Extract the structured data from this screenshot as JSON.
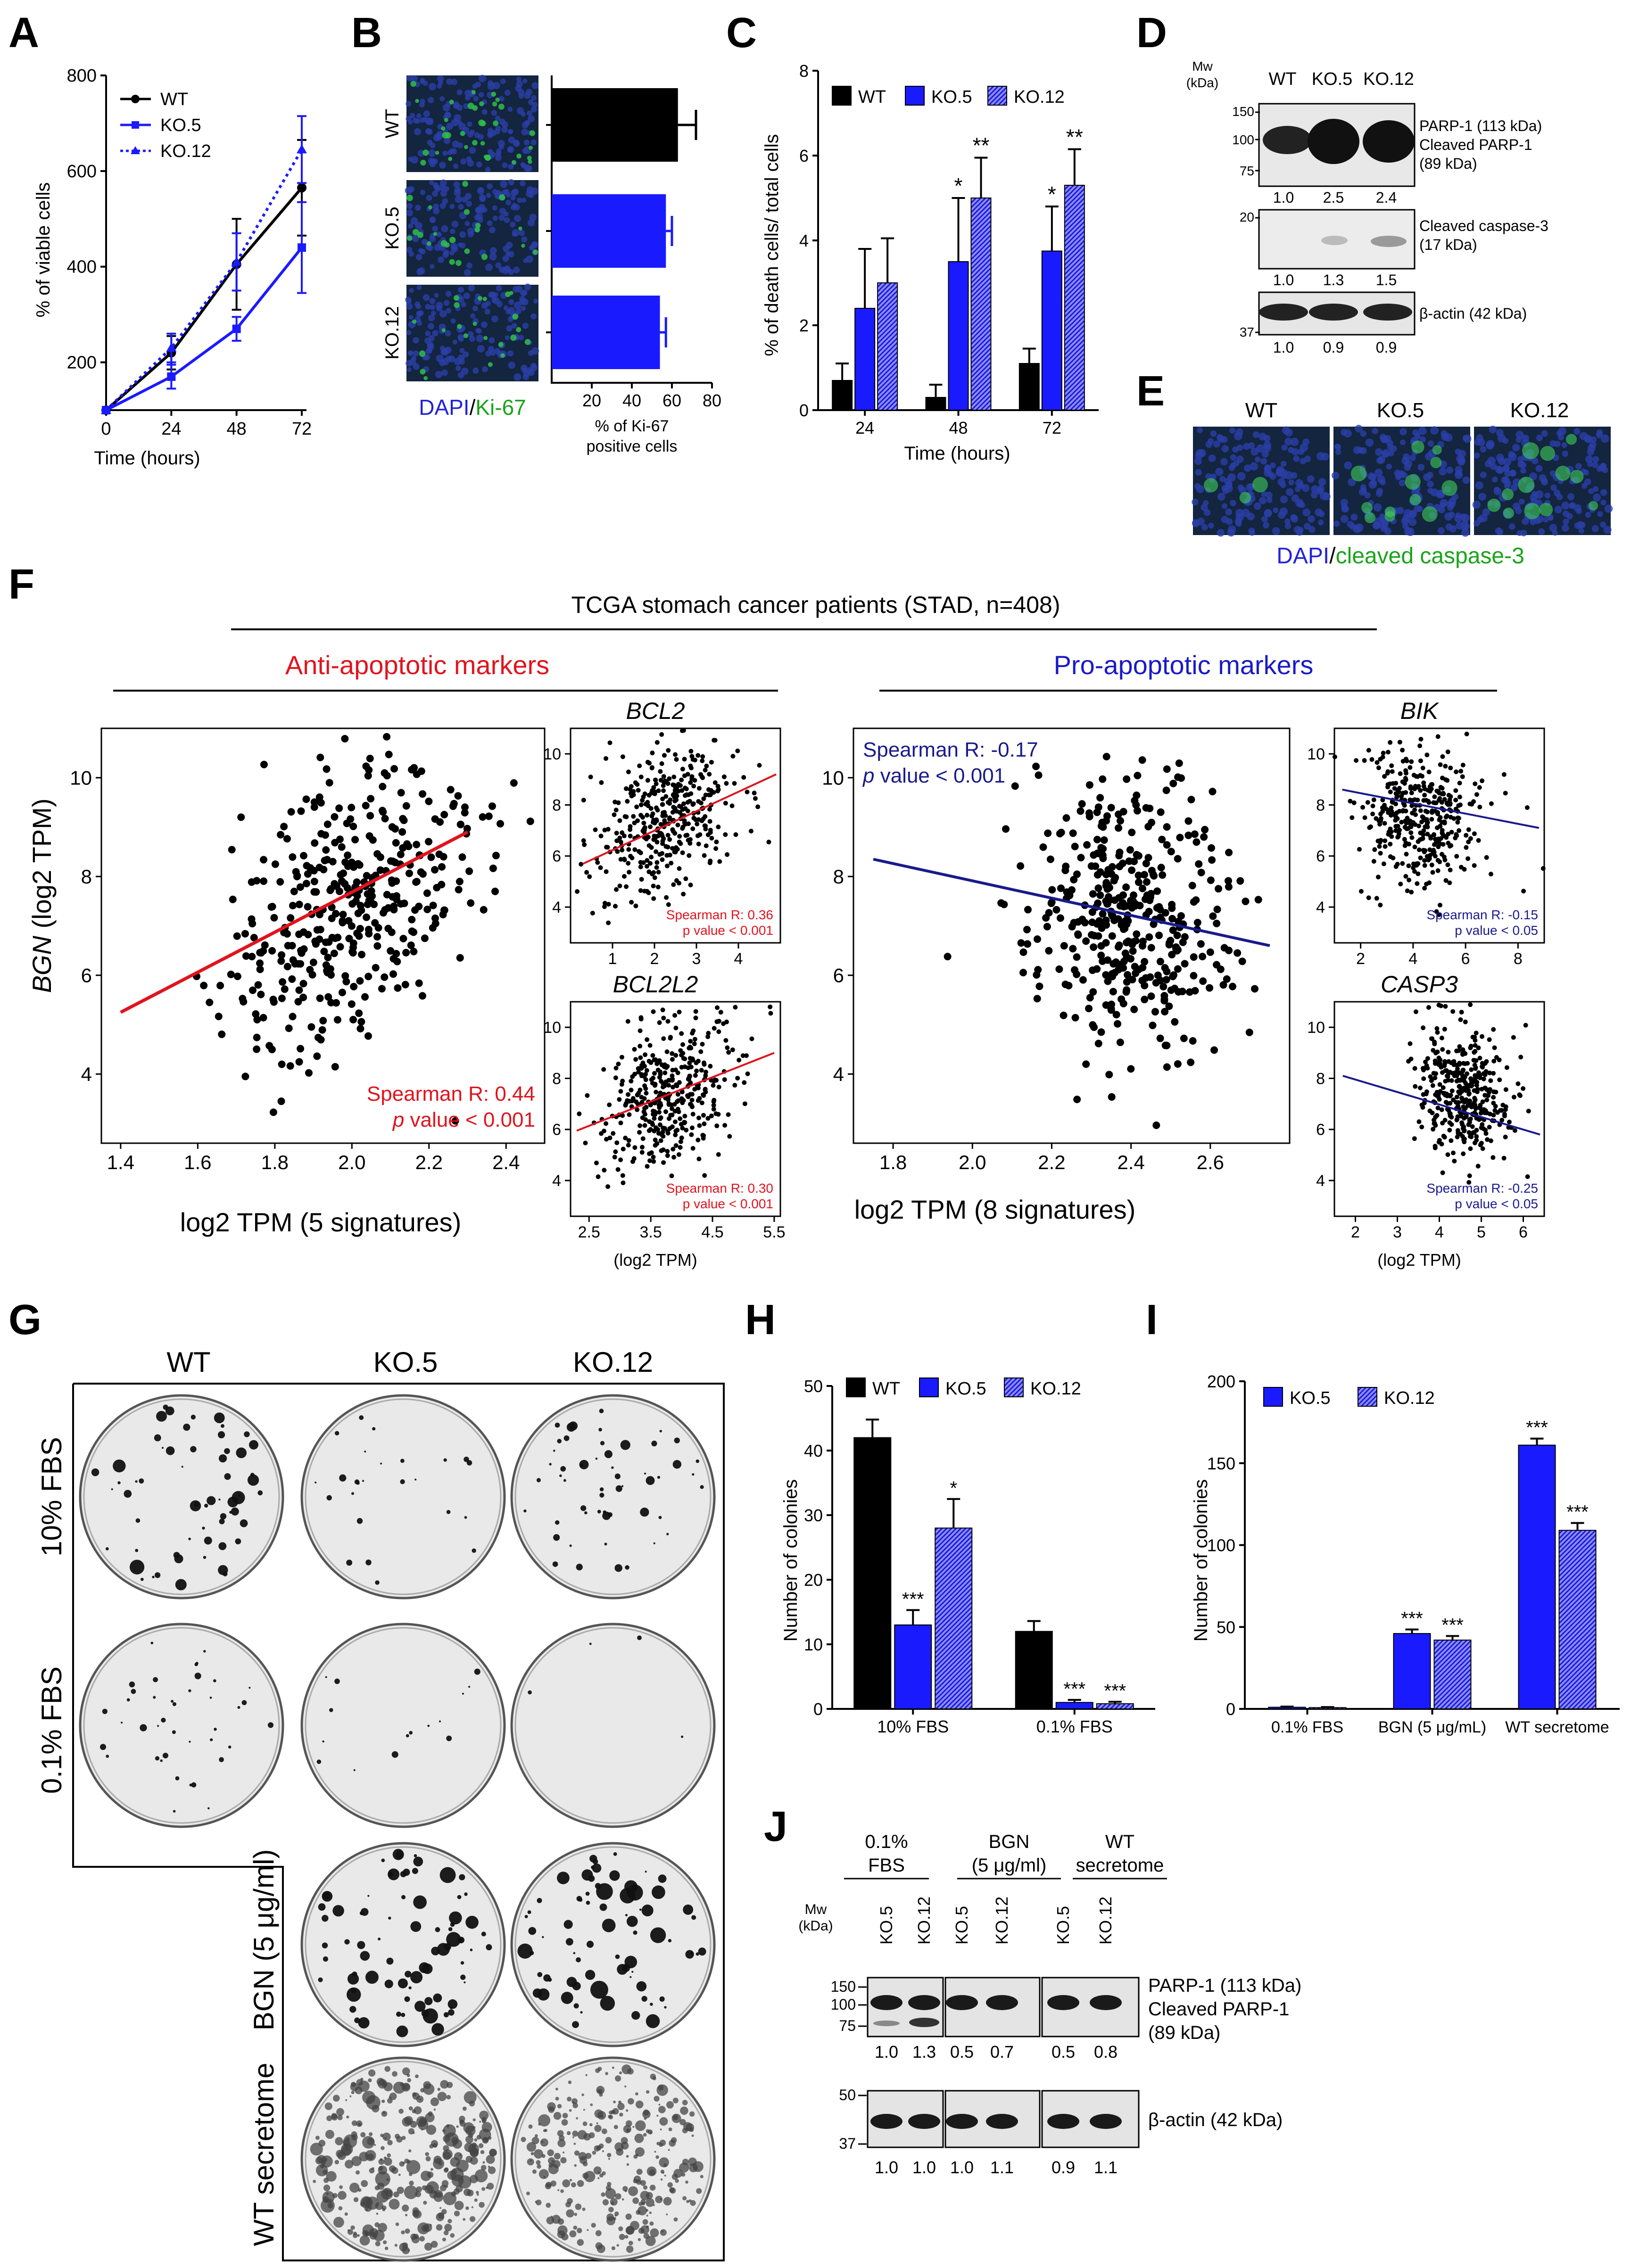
{
  "panels": {
    "A": {
      "letter": "A",
      "ylabel": "% of viable cells",
      "xlabel": "Time (hours)",
      "legend": [
        "WT",
        "KO.5",
        "KO.12"
      ]
    },
    "B": {
      "letter": "B",
      "rows": [
        "WT",
        "KO.5",
        "KO.12"
      ],
      "stain_dapi": "DAPI",
      "stain_sep": "/",
      "stain_ki67": "Ki-67",
      "xlabel_line1": "% of Ki-67",
      "xlabel_line2": "positive cells"
    },
    "C": {
      "letter": "C",
      "ylabel": "% of death cells/ total cells",
      "xlabel": "Time (hours)",
      "legend": [
        "WT",
        "KO.5",
        "KO.12"
      ],
      "star1": "*",
      "star2": "**"
    },
    "D": {
      "letter": "D",
      "mw_line1": "Mw",
      "mw_line2": "(kDa)",
      "lanes": [
        "WT",
        "KO.5",
        "KO.12"
      ],
      "blot1_label_1": "PARP-1 (113 kDa)",
      "blot1_label_2": "Cleaved PARP-1",
      "blot1_label_3": "(89 kDa)",
      "blot1_markers": [
        "150",
        "100",
        "75"
      ],
      "blot1_quant": [
        "1.0",
        "2.5",
        "2.4"
      ],
      "blot2_label_1": "Cleaved caspase-3",
      "blot2_label_2": "(17 kDa)",
      "blot2_markers": [
        "20"
      ],
      "blot2_quant": [
        "1.0",
        "1.3",
        "1.5"
      ],
      "blot3_label": "β-actin (42 kDa)",
      "blot3_markers": [
        "37"
      ],
      "blot3_quant": [
        "1.0",
        "0.9",
        "0.9"
      ]
    },
    "E": {
      "letter": "E",
      "columns": [
        "WT",
        "KO.5",
        "KO.12"
      ],
      "stain_dapi": "DAPI",
      "stain_sep": "/",
      "stain_casp": "cleaved caspase-3"
    },
    "F": {
      "letter": "F",
      "title": "TCGA stomach cancer patients (STAD, n=408)",
      "anti_title": "Anti-apoptotic markers",
      "pro_title": "Pro-apoptotic markers",
      "ylabel_gene": "BGN",
      "ylabel_rest": " (log2 TPM)",
      "anti_xlabel": "log2 TPM (5 signatures)",
      "pro_xlabel": "log2 TPM (8 signatures)",
      "anti_stat_r": "Spearman R: 0.44",
      "anti_stat_p_italic": "p",
      "anti_stat_p_rest": " value < 0.001",
      "pro_stat_r": "Spearman R: -0.17",
      "pro_stat_p_italic": "p",
      "pro_stat_p_rest": " value < 0.001",
      "bcl2_title": "BCL2",
      "bcl2_r": "Spearman R: 0.36",
      "bcl2_p": "p value < 0.001",
      "bcl2l2_title": "BCL2L2",
      "bcl2l2_r": "Spearman R: 0.30",
      "bcl2l2_p": "p value < 0.001",
      "bik_title": "BIK",
      "bik_r": "Spearman R: -0.15",
      "bik_p": "p value < 0.05",
      "casp3_title": "CASP3",
      "casp3_r": "Spearman R: -0.25",
      "casp3_p": "p value < 0.05",
      "small_xlabel": "(log2 TPM)"
    },
    "G": {
      "letter": "G",
      "columns": [
        "WT",
        "KO.5",
        "KO.12"
      ],
      "rows": [
        "10% FBS",
        "0.1% FBS",
        "BGN (5 μg/ml)",
        "WT secretome"
      ]
    },
    "H": {
      "letter": "H",
      "ylabel": "Number of colonies",
      "legend": [
        "WT",
        "KO.5",
        "KO.12"
      ],
      "stars": [
        "***",
        "*",
        "***",
        "***"
      ]
    },
    "I": {
      "letter": "I",
      "ylabel": "Number of colonies",
      "legend": [
        "KO.5",
        "KO.12"
      ],
      "stars": [
        "***",
        "***",
        "***",
        "***"
      ]
    },
    "J": {
      "letter": "J",
      "group1_line1": "0.1%",
      "group1_line2": "FBS",
      "group2_line1": "BGN",
      "group2_line2": "(5 μg/ml)",
      "group3_line1": "WT",
      "group3_line2": "secretome",
      "mw_line1": "Mw",
      "mw_line2": "(kDa)",
      "lanes": [
        "KO.5",
        "KO.12",
        "KO.5",
        "KO.12",
        "KO.5",
        "KO.12"
      ],
      "blot1_label_1": "PARP-1 (113 kDa)",
      "blot1_label_2": "Cleaved PARP-1",
      "blot1_label_3": "(89 kDa)",
      "blot1_markers": [
        "150",
        "100",
        "75"
      ],
      "blot1_quant": [
        "1.0",
        "1.3",
        "0.5",
        "0.7",
        "0.5",
        "0.8"
      ],
      "blot2_label": "β-actin (42 kDa)",
      "blot2_markers": [
        "50",
        "37"
      ],
      "blot2_quant": [
        "1.0",
        "1.0",
        "1.0",
        "1.1",
        "0.9",
        "1.1"
      ]
    }
  },
  "colors": {
    "wt": "#000000",
    "ko": "#1a1aff",
    "anti_red": "#e0141e",
    "pro_navy": "#1a1a8c",
    "ki67_green": "#1aa31a",
    "dapi_blue": "#2323d8"
  },
  "chart_data": [
    {
      "id": "A",
      "type": "line",
      "x": [
        0,
        24,
        48,
        72
      ],
      "series": [
        {
          "name": "WT",
          "values": [
            100,
            220,
            405,
            565
          ],
          "err": [
            0,
            35,
            95,
            100
          ]
        },
        {
          "name": "KO.5",
          "values": [
            100,
            170,
            270,
            440
          ],
          "err": [
            0,
            25,
            25,
            95
          ]
        },
        {
          "name": "KO.12",
          "values": [
            100,
            230,
            410,
            645
          ],
          "err": [
            0,
            30,
            60,
            70
          ]
        }
      ],
      "xticks": [
        "0",
        "24",
        "48",
        "72"
      ],
      "yticks": [
        "200",
        "400",
        "600",
        "800"
      ],
      "ylim": [
        100,
        800
      ]
    },
    {
      "id": "B",
      "type": "bar",
      "orientation": "horizontal",
      "categories": [
        "WT",
        "KO.5",
        "KO.12"
      ],
      "values": [
        63,
        57,
        54
      ],
      "err": [
        9,
        3,
        3
      ],
      "xticks": [
        "20",
        "40",
        "60",
        "80"
      ],
      "xlim": [
        0,
        80
      ]
    },
    {
      "id": "C",
      "type": "bar",
      "categories": [
        "24",
        "48",
        "72"
      ],
      "series": [
        {
          "name": "WT",
          "values": [
            0.7,
            0.3,
            1.1
          ],
          "err": [
            0.4,
            0.3,
            0.35
          ]
        },
        {
          "name": "KO.5",
          "values": [
            2.4,
            3.5,
            3.75
          ],
          "err": [
            1.4,
            1.5,
            1.05
          ]
        },
        {
          "name": "KO.12",
          "values": [
            3.0,
            5.0,
            5.3
          ],
          "err": [
            1.05,
            0.95,
            0.85
          ]
        }
      ],
      "yticks": [
        "0",
        "2",
        "4",
        "6",
        "8"
      ],
      "ylim": [
        0,
        8
      ]
    },
    {
      "id": "H",
      "type": "bar",
      "categories": [
        "10% FBS",
        "0.1% FBS"
      ],
      "series": [
        {
          "name": "WT",
          "values": [
            42,
            12
          ],
          "err": [
            2.8,
            1.6
          ]
        },
        {
          "name": "KO.5",
          "values": [
            13,
            1
          ],
          "err": [
            2.3,
            0.4
          ]
        },
        {
          "name": "KO.12",
          "values": [
            28,
            0.8
          ],
          "err": [
            4.5,
            0.3
          ]
        }
      ],
      "yticks": [
        "0",
        "10",
        "20",
        "30",
        "40",
        "50"
      ],
      "ylim": [
        0,
        50
      ]
    },
    {
      "id": "I",
      "type": "bar",
      "categories": [
        "0.1% FBS",
        "BGN (5 μg/mL)",
        "WT secretome"
      ],
      "series": [
        {
          "name": "KO.5",
          "values": [
            1,
            46,
            161
          ],
          "err": [
            0.4,
            2.5,
            4
          ]
        },
        {
          "name": "KO.12",
          "values": [
            0.8,
            42,
            109
          ],
          "err": [
            0.3,
            2.5,
            4.5
          ]
        }
      ],
      "yticks": [
        "0",
        "50",
        "100",
        "150",
        "200"
      ],
      "ylim": [
        0,
        200
      ]
    },
    {
      "id": "F-main-anti",
      "type": "scatter",
      "n": 408,
      "xlim": [
        1.35,
        2.5
      ],
      "ylim": [
        2.6,
        11
      ],
      "xticks": [
        "1.4",
        "1.6",
        "1.8",
        "2.0",
        "2.2",
        "2.4"
      ],
      "yticks": [
        "4",
        "6",
        "8",
        "10"
      ],
      "fit": [
        [
          1.4,
          5.25
        ],
        [
          2.3,
          8.9
        ]
      ],
      "center": [
        2.0,
        7.5
      ],
      "spread": [
        0.18,
        1.45
      ],
      "slope": 4.05
    },
    {
      "id": "F-main-pro",
      "type": "scatter",
      "n": 408,
      "xlim": [
        1.7,
        2.8
      ],
      "ylim": [
        2.6,
        11
      ],
      "xticks": [
        "1.8",
        "2.0",
        "2.2",
        "2.4",
        "2.6"
      ],
      "yticks": [
        "4",
        "6",
        "8",
        "10"
      ],
      "fit": [
        [
          1.75,
          8.35
        ],
        [
          2.75,
          6.6
        ]
      ],
      "center": [
        2.4,
        7.3
      ],
      "spread": [
        0.13,
        1.45
      ],
      "slope": -1.75
    },
    {
      "id": "F-BCL2",
      "type": "scatter",
      "n": 408,
      "xlim": [
        0,
        5
      ],
      "ylim": [
        2.6,
        11
      ],
      "xticks": [
        "1",
        "2",
        "3",
        "4"
      ],
      "yticks": [
        "4",
        "6",
        "8",
        "10"
      ],
      "fit": [
        [
          0.3,
          5.7
        ],
        [
          4.9,
          9.2
        ]
      ],
      "center": [
        2.2,
        7.4
      ],
      "spread": [
        0.85,
        1.4
      ],
      "slope": 0.76
    },
    {
      "id": "F-BCL2L2",
      "type": "scatter",
      "n": 408,
      "xlim": [
        2.2,
        5.6
      ],
      "ylim": [
        2.6,
        11
      ],
      "xticks": [
        "2.5",
        "3.5",
        "4.5",
        "5.5"
      ],
      "yticks": [
        "4",
        "6",
        "8",
        "10"
      ],
      "fit": [
        [
          2.3,
          5.95
        ],
        [
          5.5,
          9.0
        ]
      ],
      "center": [
        3.8,
        7.4
      ],
      "spread": [
        0.55,
        1.4
      ],
      "slope": 0.95
    },
    {
      "id": "F-BIK",
      "type": "scatter",
      "n": 408,
      "xlim": [
        1,
        9
      ],
      "ylim": [
        2.6,
        11
      ],
      "xticks": [
        "2",
        "4",
        "6",
        "8"
      ],
      "yticks": [
        "4",
        "6",
        "8",
        "10"
      ],
      "fit": [
        [
          1.3,
          8.6
        ],
        [
          8.8,
          7.1
        ]
      ],
      "center": [
        4.3,
        7.6
      ],
      "spread": [
        1.2,
        1.3
      ],
      "slope": -0.2
    },
    {
      "id": "F-CASP3",
      "type": "scatter",
      "n": 408,
      "xlim": [
        1.5,
        6.5
      ],
      "ylim": [
        2.6,
        11
      ],
      "xticks": [
        "2",
        "3",
        "4",
        "5",
        "6"
      ],
      "yticks": [
        "4",
        "6",
        "8",
        "10"
      ],
      "fit": [
        [
          1.7,
          8.1
        ],
        [
          6.4,
          5.8
        ]
      ],
      "center": [
        4.6,
        7.4
      ],
      "spread": [
        0.55,
        1.3
      ],
      "slope": -0.5
    }
  ]
}
